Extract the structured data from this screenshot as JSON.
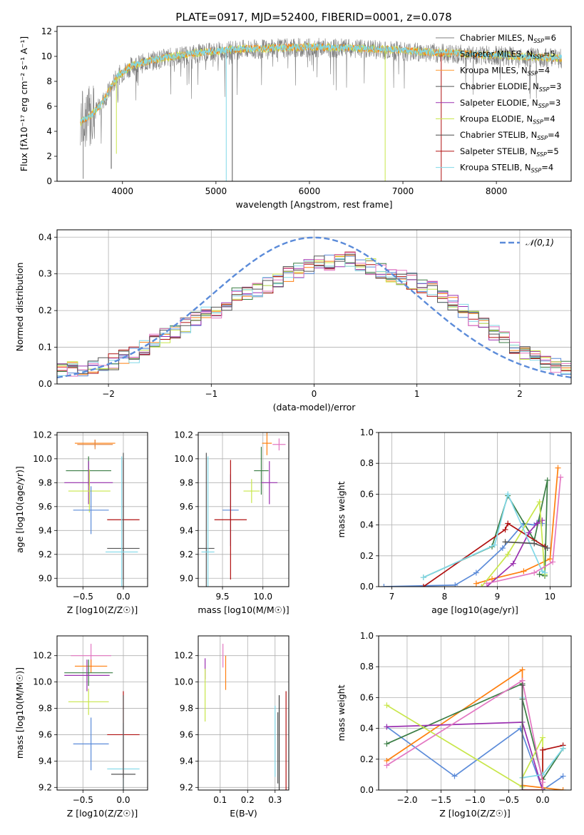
{
  "figure_title": "PLATE=0917, MJD=52400, FIBERID=0001, z=0.078",
  "series_colors": {
    "Chabrier MILES": "#7f7f7f",
    "Salpeter MILES": "#ff7f0e",
    "Kroupa MILES": "#ff9933",
    "Chabrier ELODIE": "#555555",
    "Salpeter ELODIE": "#9b30b0",
    "Kroupa ELODIE": "#c8e64a",
    "Chabrier STELIB": "#4a4a4a",
    "Salpeter STELIB": "#b01010",
    "Kroupa STELIB": "#80d8e8"
  },
  "chart_data": [
    {
      "id": "spectrum",
      "type": "line",
      "title": "PLATE=0917, MJD=52400, FIBERID=0001, z=0.078",
      "xlabel": "wavelength [Angstrom, rest frame]",
      "ylabel": "Flux [fλ10⁻¹⁷ erg cm⁻² s⁻¹ A⁻¹]",
      "xlim": [
        3300,
        8800
      ],
      "ylim": [
        0,
        12.4
      ],
      "xticks": [
        4000,
        5000,
        6000,
        7000,
        8000
      ],
      "yticks": [
        0,
        2,
        4,
        6,
        8,
        10,
        12
      ],
      "grid": false,
      "legend_position": "top-right",
      "legend": [
        {
          "label": "Chabrier MILES, N_SSP=6",
          "color": "#7f7f7f"
        },
        {
          "label": "Salpeter MILES, N_SSP=5",
          "color": "#ff7f0e"
        },
        {
          "label": "Kroupa MILES, N_SSP=4",
          "color": "#ff9933"
        },
        {
          "label": "Chabrier ELODIE, N_SSP=3",
          "color": "#555555"
        },
        {
          "label": "Salpeter ELODIE, N_SSP=3",
          "color": "#9b30b0"
        },
        {
          "label": "Kroupa ELODIE, N_SSP=4",
          "color": "#c8e64a"
        },
        {
          "label": "Chabrier STELIB, N_SSP=4",
          "color": "#4a4a4a"
        },
        {
          "label": "Salpeter STELIB, N_SSP=5",
          "color": "#b01010"
        },
        {
          "label": "Kroupa STELIB, N_SSP=4",
          "color": "#80d8e8"
        }
      ],
      "continuum": {
        "x": [
          3550,
          3650,
          3750,
          3850,
          3950,
          4100,
          4300,
          4500,
          4800,
          5200,
          5600,
          6000,
          6400,
          6800,
          7200,
          7500,
          7800,
          8100,
          8400,
          8700
        ],
        "y": [
          4.8,
          5.2,
          6.0,
          7.2,
          8.5,
          9.3,
          9.7,
          10.0,
          10.3,
          10.6,
          10.7,
          10.8,
          10.7,
          10.6,
          10.4,
          10.3,
          10.2,
          10.1,
          10.0,
          9.9
        ]
      },
      "spikes": {
        "x": [
          3580,
          3880,
          3935,
          5110,
          5175,
          6810,
          7410
        ],
        "y": [
          0.2,
          1.0,
          2.2,
          0.0,
          0.0,
          0.0,
          0.0
        ],
        "colors": [
          "#7f7f7f",
          "#555555",
          "#c8e64a",
          "#80d8e8",
          "#555555",
          "#c8e64a",
          "#b01010"
        ]
      }
    },
    {
      "id": "residuals",
      "type": "histogram",
      "xlabel": "(data-model)/error",
      "ylabel": "Normed distribution",
      "xlim": [
        -2.5,
        2.5
      ],
      "ylim": [
        0,
        0.42
      ],
      "xticks": [
        -2,
        -1,
        0,
        1,
        2
      ],
      "yticks": [
        0.0,
        0.1,
        0.2,
        0.3,
        0.4
      ],
      "grid": true,
      "legend_position": "top-right",
      "legend": [
        {
          "label": "𝒩(0,1)",
          "color": "#5b8bd9"
        }
      ],
      "bin_width": 0.1,
      "bin_start": -2.5,
      "envelope": [
        0.04,
        0.04,
        0.035,
        0.05,
        0.05,
        0.06,
        0.07,
        0.08,
        0.1,
        0.12,
        0.13,
        0.14,
        0.16,
        0.18,
        0.19,
        0.2,
        0.22,
        0.24,
        0.25,
        0.26,
        0.27,
        0.28,
        0.3,
        0.31,
        0.32,
        0.33,
        0.33,
        0.34,
        0.34,
        0.33,
        0.32,
        0.31,
        0.3,
        0.29,
        0.28,
        0.27,
        0.26,
        0.24,
        0.22,
        0.2,
        0.18,
        0.16,
        0.14,
        0.12,
        0.1,
        0.08,
        0.07,
        0.06,
        0.05,
        0.045
      ],
      "series_colors": [
        "#ff7f0e",
        "#5b8bd9",
        "#3a7d44",
        "#9b30b0",
        "#c8e64a",
        "#b01010",
        "#80d8e8",
        "#e377c2",
        "#555555"
      ]
    },
    {
      "id": "age_vs_Z",
      "type": "errorbar",
      "xlabel": "Z [log10(Z/Z☉)]",
      "ylabel": "age  [log10(age/yr)]",
      "xlim": [
        -0.82,
        0.3
      ],
      "ylim": [
        8.93,
        10.22
      ],
      "xticks": [
        -0.5,
        0.0
      ],
      "yticks": [
        9.0,
        9.2,
        9.4,
        9.6,
        9.8,
        10.0,
        10.2
      ],
      "grid": true,
      "points": [
        {
          "x": -0.35,
          "y": 10.13,
          "xerr": 0.25,
          "yerr": 0.03,
          "color": "#ff7f0e"
        },
        {
          "x": -0.35,
          "y": 10.12,
          "xerr": 0.22,
          "yerr": 0.04,
          "color": "#e38a4a"
        },
        {
          "x": -0.43,
          "y": 9.9,
          "xerr": 0.28,
          "yerr": 0.12,
          "color": "#3a7d44"
        },
        {
          "x": -0.43,
          "y": 9.8,
          "xerr": 0.3,
          "yerr": 0.18,
          "color": "#9b30b0"
        },
        {
          "x": -0.42,
          "y": 9.73,
          "xerr": 0.26,
          "yerr": 0.18,
          "color": "#c8e64a"
        },
        {
          "x": -0.4,
          "y": 9.57,
          "xerr": 0.22,
          "yerr": 0.2,
          "color": "#5b8bd9"
        },
        {
          "x": 0.0,
          "y": 9.49,
          "xerr": 0.2,
          "yerr": 0.5,
          "color": "#b01010"
        },
        {
          "x": 0.0,
          "y": 9.25,
          "xerr": 0.2,
          "yerr": 0.8,
          "color": "#555555"
        },
        {
          "x": -0.02,
          "y": 9.22,
          "xerr": 0.2,
          "yerr": 0.8,
          "color": "#80d8e8"
        }
      ]
    },
    {
      "id": "age_vs_mass",
      "type": "errorbar",
      "xlabel": "mass [log10(M/M☉)]",
      "ylabel": "",
      "xlim": [
        9.2,
        10.32
      ],
      "ylim": [
        8.93,
        10.22
      ],
      "xticks": [
        9.5,
        10.0
      ],
      "yticks": [
        9.0,
        9.2,
        9.4,
        9.6,
        9.8,
        10.0,
        10.2
      ],
      "grid": true,
      "points": [
        {
          "x": 10.05,
          "y": 10.13,
          "xerr": 0.06,
          "yerr": 0.1,
          "color": "#ff7f0e"
        },
        {
          "x": 10.2,
          "y": 10.12,
          "xerr": 0.08,
          "yerr": 0.05,
          "color": "#e377c2"
        },
        {
          "x": 9.98,
          "y": 9.9,
          "xerr": 0.09,
          "yerr": 0.2,
          "color": "#3a7d44"
        },
        {
          "x": 10.08,
          "y": 9.8,
          "xerr": 0.1,
          "yerr": 0.18,
          "color": "#9b30b0"
        },
        {
          "x": 9.86,
          "y": 9.73,
          "xerr": 0.1,
          "yerr": 0.1,
          "color": "#c8e64a"
        },
        {
          "x": 9.6,
          "y": 9.57,
          "xerr": 0.1,
          "yerr": 0.3,
          "color": "#5b8bd9"
        },
        {
          "x": 9.6,
          "y": 9.49,
          "xerr": 0.2,
          "yerr": 0.5,
          "color": "#b01010"
        },
        {
          "x": 9.3,
          "y": 9.25,
          "xerr": 0.1,
          "yerr": 0.8,
          "color": "#555555"
        },
        {
          "x": 9.32,
          "y": 9.22,
          "xerr": 0.08,
          "yerr": 0.8,
          "color": "#80d8e8"
        }
      ]
    },
    {
      "id": "sfh_age",
      "type": "line",
      "xlabel": "age  [log10(age/yr)]",
      "ylabel": "mass weight",
      "xlim": [
        6.75,
        10.4
      ],
      "ylim": [
        0,
        1.0
      ],
      "xticks": [
        7,
        8,
        9,
        10
      ],
      "yticks": [
        0.0,
        0.2,
        0.4,
        0.6,
        0.8,
        1.0
      ],
      "grid": true,
      "series": [
        {
          "color": "#5b8bd9",
          "x": [
            6.85,
            8.2,
            8.6,
            9.1,
            9.5,
            9.7,
            9.8,
            9.85
          ],
          "y": [
            0.0,
            0.01,
            0.09,
            0.25,
            0.41,
            0.4,
            0.43,
            0.41
          ]
        },
        {
          "color": "#ff7f0e",
          "x": [
            8.6,
            8.9,
            9.5,
            10.0,
            10.15
          ],
          "y": [
            0.02,
            0.05,
            0.1,
            0.18,
            0.77
          ]
        },
        {
          "color": "#3a7d44",
          "x": [
            7.6,
            8.9,
            9.2,
            9.7,
            9.95,
            9.9,
            9.8
          ],
          "y": [
            0.06,
            0.26,
            0.59,
            0.3,
            0.69,
            0.07,
            0.08
          ]
        },
        {
          "color": "#9b30b0",
          "x": [
            8.8,
            9.3,
            9.6,
            9.75,
            9.85
          ],
          "y": [
            0.0,
            0.15,
            0.35,
            0.41,
            0.43
          ]
        },
        {
          "color": "#c8e64a",
          "x": [
            8.7,
            9.2,
            9.8,
            9.9
          ],
          "y": [
            0.0,
            0.21,
            0.55,
            0.08
          ]
        },
        {
          "color": "#b01010",
          "x": [
            7.6,
            9.15,
            9.2,
            9.9
          ],
          "y": [
            0.0,
            0.37,
            0.41,
            0.26
          ]
        },
        {
          "color": "#80d8e8",
          "x": [
            7.6,
            8.95,
            9.2,
            9.85,
            9.9
          ],
          "y": [
            0.06,
            0.27,
            0.6,
            0.1,
            0.09
          ]
        },
        {
          "color": "#e377c2",
          "x": [
            8.8,
            9.7,
            10.05,
            10.2
          ],
          "y": [
            0.02,
            0.09,
            0.16,
            0.71
          ]
        },
        {
          "color": "#555555",
          "x": [
            9.15,
            9.7,
            9.95
          ],
          "y": [
            0.29,
            0.28,
            0.25
          ]
        }
      ]
    },
    {
      "id": "mass_vs_Z",
      "type": "errorbar",
      "xlabel": "Z [log10(Z/Z☉)]",
      "ylabel": "mass [log10(M/M☉)]",
      "xlim": [
        -0.82,
        0.3
      ],
      "ylim": [
        9.18,
        10.35
      ],
      "xticks": [
        -0.5,
        0.0
      ],
      "yticks": [
        9.2,
        9.4,
        9.6,
        9.8,
        10.0,
        10.2
      ],
      "grid": true,
      "points": [
        {
          "x": -0.4,
          "y": 10.2,
          "xerr": 0.25,
          "yerr": 0.09,
          "color": "#e377c2"
        },
        {
          "x": -0.4,
          "y": 10.12,
          "xerr": 0.2,
          "yerr": 0.05,
          "color": "#ff7f0e"
        },
        {
          "x": -0.43,
          "y": 10.07,
          "xerr": 0.3,
          "yerr": 0.1,
          "color": "#3a7d44"
        },
        {
          "x": -0.45,
          "y": 10.05,
          "xerr": 0.28,
          "yerr": 0.12,
          "color": "#9b30b0"
        },
        {
          "x": -0.43,
          "y": 9.85,
          "xerr": 0.25,
          "yerr": 0.1,
          "color": "#c8e64a"
        },
        {
          "x": -0.4,
          "y": 9.53,
          "xerr": 0.22,
          "yerr": 0.2,
          "color": "#5b8bd9"
        },
        {
          "x": 0.0,
          "y": 9.6,
          "xerr": 0.2,
          "yerr": 0.33,
          "color": "#b01010"
        },
        {
          "x": 0.0,
          "y": 9.34,
          "xerr": 0.2,
          "yerr": 0.35,
          "color": "#80d8e8"
        },
        {
          "x": 0.0,
          "y": 9.3,
          "xerr": 0.15,
          "yerr": 0.6,
          "color": "#555555"
        }
      ]
    },
    {
      "id": "mass_vs_ebv",
      "type": "errorbar",
      "xlabel": "E(B-V)",
      "ylabel": "",
      "xlim": [
        0.02,
        0.35
      ],
      "ylim": [
        9.18,
        10.35
      ],
      "xticks": [
        0.1,
        0.2,
        0.3
      ],
      "yticks": [
        9.2,
        9.4,
        9.6,
        9.8,
        10.0,
        10.2
      ],
      "grid": true,
      "points": [
        {
          "x": 0.045,
          "y": 10.1,
          "xerr": 0.0,
          "yerr": 0.08,
          "color": "#9b30b0"
        },
        {
          "x": 0.045,
          "y": 9.9,
          "xerr": 0.0,
          "yerr": 0.2,
          "color": "#c8e64a"
        },
        {
          "x": 0.11,
          "y": 10.2,
          "xerr": 0.0,
          "yerr": 0.09,
          "color": "#e377c2"
        },
        {
          "x": 0.12,
          "y": 10.07,
          "xerr": 0.0,
          "yerr": 0.13,
          "color": "#ff7f0e"
        },
        {
          "x": 0.3,
          "y": 9.55,
          "xerr": 0.0,
          "yerr": 0.27,
          "color": "#80d8e8"
        },
        {
          "x": 0.31,
          "y": 9.5,
          "xerr": 0.0,
          "yerr": 0.27,
          "color": "#555555"
        },
        {
          "x": 0.34,
          "y": 9.55,
          "xerr": 0.0,
          "yerr": 0.38,
          "color": "#b01010"
        },
        {
          "x": 0.315,
          "y": 9.5,
          "xerr": 0.0,
          "yerr": 0.4,
          "color": "#3a3a3a"
        }
      ]
    },
    {
      "id": "sfh_Z",
      "type": "line",
      "xlabel": "Z [log10(Z/Z☉)]",
      "ylabel": "mass weight",
      "xlim": [
        -2.42,
        0.42
      ],
      "ylim": [
        0,
        1.0
      ],
      "xticks": [
        -2.0,
        -1.5,
        -1.0,
        -0.5,
        0.0
      ],
      "yticks": [
        0.0,
        0.2,
        0.4,
        0.6,
        0.8,
        1.0
      ],
      "grid": true,
      "series": [
        {
          "color": "#5b8bd9",
          "x": [
            -2.3,
            -1.3,
            -0.33,
            0.0,
            0.3
          ],
          "y": [
            0.41,
            0.09,
            0.4,
            0.0,
            0.09
          ]
        },
        {
          "color": "#ff7f0e",
          "x": [
            -2.3,
            -0.3,
            -0.3,
            0.3
          ],
          "y": [
            0.19,
            0.78,
            0.03,
            0.0
          ]
        },
        {
          "color": "#3a7d44",
          "x": [
            -2.3,
            -0.3,
            -0.3,
            0.0,
            0.3
          ],
          "y": [
            0.3,
            0.69,
            0.59,
            0.07,
            0.27
          ]
        },
        {
          "color": "#9b30b0",
          "x": [
            -2.3,
            -0.3,
            0.0
          ],
          "y": [
            0.41,
            0.44,
            0.0
          ]
        },
        {
          "color": "#c8e64a",
          "x": [
            -2.3,
            -0.3,
            -0.3,
            0.0,
            0.0
          ],
          "y": [
            0.55,
            0.02,
            0.08,
            0.34,
            0.0
          ]
        },
        {
          "color": "#b01010",
          "x": [
            -0.3,
            0.0,
            0.0,
            0.3
          ],
          "y": [
            0.0,
            0.0,
            0.26,
            0.29
          ]
        },
        {
          "color": "#80d8e8",
          "x": [
            -0.3,
            -0.3,
            0.0,
            0.3
          ],
          "y": [
            0.6,
            0.08,
            0.1,
            0.27
          ]
        },
        {
          "color": "#e377c2",
          "x": [
            -2.3,
            -0.3,
            0.0,
            0.0
          ],
          "y": [
            0.16,
            0.71,
            0.05,
            0.0
          ]
        },
        {
          "color": "#555555",
          "x": [
            -0.3,
            -0.3
          ],
          "y": [
            0.68,
            0.0
          ]
        }
      ]
    }
  ]
}
